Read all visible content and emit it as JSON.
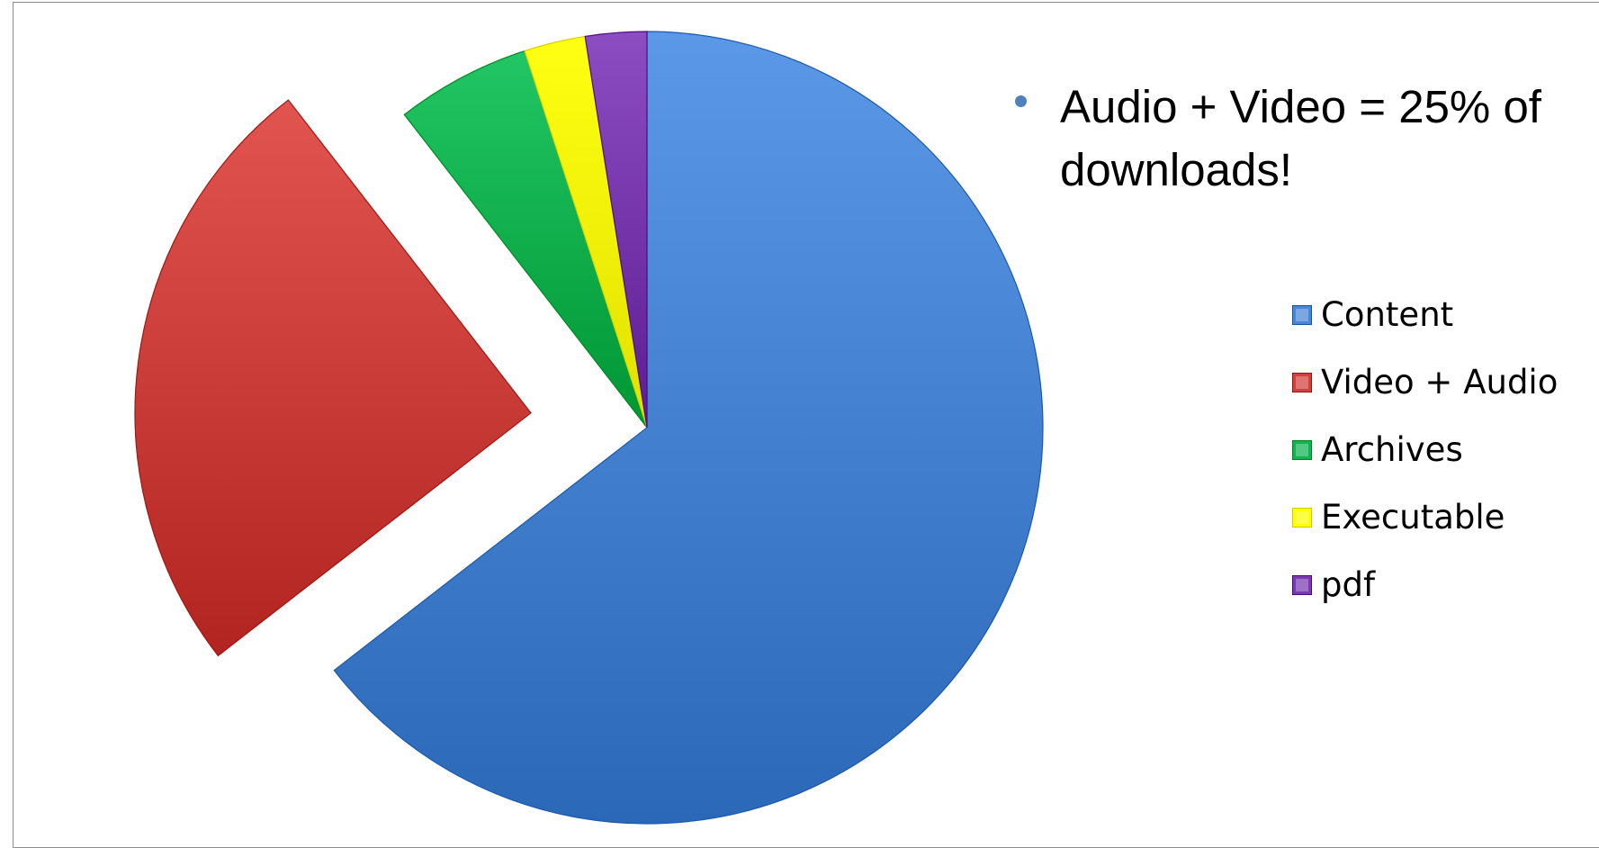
{
  "chart_data": {
    "type": "pie",
    "title": "",
    "categories": [
      "Content",
      "Video + Audio",
      "Archives",
      "Executable",
      "pdf"
    ],
    "values": [
      64.5,
      25,
      5.5,
      2.5,
      2.5
    ],
    "unit": "%",
    "exploded": [
      "Video + Audio"
    ],
    "legend": {
      "placement": "right",
      "entries": [
        "Content",
        "Video + Audio",
        "Archives",
        "Executable",
        "pdf"
      ]
    },
    "colors": [
      "#4a86d6",
      "#d0423e",
      "#10b452",
      "#ffff00",
      "#7a3bb0"
    ]
  },
  "annotation": {
    "text": "Audio + Video = 25% of downloads!"
  },
  "colors": {
    "bullet": "#4f81bd",
    "frame_border": "#8c8c8c"
  }
}
